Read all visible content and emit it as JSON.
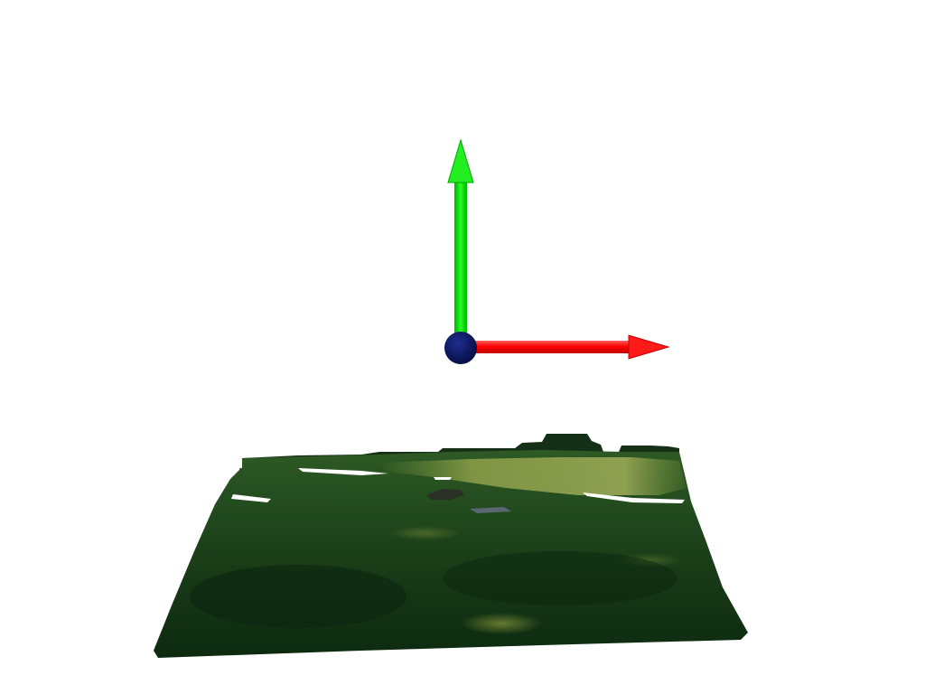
{
  "scene": {
    "background_color": "#ffffff",
    "axes": {
      "x_axis_color": "#ff0000",
      "y_axis_color": "#00e000",
      "origin_color": "#0a1560"
    },
    "ground": {
      "grass_dark_color": "#0e2a12",
      "grass_mid_color": "#1f4a1e",
      "grass_light_color": "#5c7a32",
      "sunlit_color": "#8a9a48",
      "treeline_color": "#163018"
    }
  }
}
